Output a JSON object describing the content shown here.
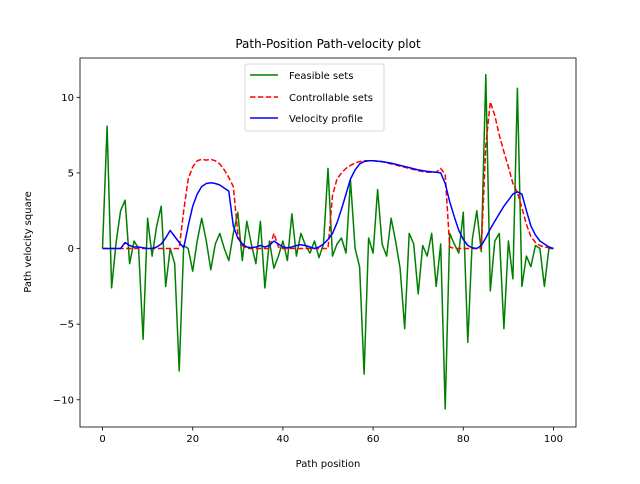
{
  "chart_data": {
    "type": "line",
    "title": "Path-Position Path-velocity plot",
    "xlabel": "Path position",
    "ylabel": "Path velocity square",
    "xlim": [
      -5,
      105
    ],
    "ylim": [
      -11.8,
      12.6
    ],
    "xticks": [
      0,
      20,
      40,
      60,
      80,
      100
    ],
    "yticks": [
      -10,
      -5,
      0,
      5,
      10
    ],
    "x_tick_labels": [
      "0",
      "20",
      "40",
      "60",
      "80",
      "100"
    ],
    "y_tick_labels": [
      "−10",
      "−5",
      "0",
      "5",
      "10"
    ],
    "grid": false,
    "legend_position": "top-center",
    "series": [
      {
        "name": "Feasible sets",
        "color": "#008000",
        "dash": "solid",
        "points": [
          [
            0,
            0
          ],
          [
            1,
            8.1
          ],
          [
            2,
            -2.6
          ],
          [
            3,
            0.4
          ],
          [
            4,
            2.5
          ],
          [
            5,
            3.2
          ],
          [
            6,
            -1.0
          ],
          [
            7,
            0.5
          ],
          [
            8,
            0.0
          ],
          [
            9,
            -6.0
          ],
          [
            10,
            2.0
          ],
          [
            11,
            -0.5
          ],
          [
            12,
            1.5
          ],
          [
            13,
            2.8
          ],
          [
            14,
            -2.5
          ],
          [
            15,
            0.0
          ],
          [
            16,
            -1.0
          ],
          [
            17,
            -8.1
          ],
          [
            18,
            0.2
          ],
          [
            19,
            0.0
          ],
          [
            20,
            -1.5
          ],
          [
            21,
            0.5
          ],
          [
            22,
            2.0
          ],
          [
            23,
            0.5
          ],
          [
            24,
            -1.4
          ],
          [
            25,
            0.3
          ],
          [
            26,
            1.0
          ],
          [
            27,
            0.0
          ],
          [
            28,
            -0.8
          ],
          [
            29,
            1.0
          ],
          [
            30,
            2.4
          ],
          [
            31,
            -0.8
          ],
          [
            32,
            1.8
          ],
          [
            33,
            0.3
          ],
          [
            34,
            -1.0
          ],
          [
            35,
            1.8
          ],
          [
            36,
            -2.6
          ],
          [
            37,
            0.5
          ],
          [
            38,
            -1.3
          ],
          [
            39,
            -0.5
          ],
          [
            40,
            0.5
          ],
          [
            41,
            -0.8
          ],
          [
            42,
            2.3
          ],
          [
            43,
            -0.5
          ],
          [
            44,
            1.0
          ],
          [
            45,
            0.2
          ],
          [
            46,
            -0.3
          ],
          [
            47,
            0.5
          ],
          [
            48,
            -0.6
          ],
          [
            49,
            0.3
          ],
          [
            50,
            5.3
          ],
          [
            51,
            -0.5
          ],
          [
            52,
            0.3
          ],
          [
            53,
            0.7
          ],
          [
            54,
            -0.3
          ],
          [
            55,
            4.5
          ],
          [
            56,
            0.0
          ],
          [
            57,
            -1.2
          ],
          [
            58,
            -8.3
          ],
          [
            59,
            0.7
          ],
          [
            60,
            -0.3
          ],
          [
            61,
            3.9
          ],
          [
            62,
            0.3
          ],
          [
            63,
            -0.5
          ],
          [
            64,
            2.0
          ],
          [
            65,
            0.5
          ],
          [
            66,
            -1.3
          ],
          [
            67,
            -5.3
          ],
          [
            68,
            1.0
          ],
          [
            69,
            0.3
          ],
          [
            70,
            -3.0
          ],
          [
            71,
            0.2
          ],
          [
            72,
            -0.5
          ],
          [
            73,
            1.0
          ],
          [
            74,
            -2.5
          ],
          [
            75,
            0.3
          ],
          [
            76,
            -10.6
          ],
          [
            77,
            1.0
          ],
          [
            78,
            0.3
          ],
          [
            79,
            -0.3
          ],
          [
            80,
            2.4
          ],
          [
            81,
            -6.2
          ],
          [
            82,
            0.6
          ],
          [
            83,
            2.5
          ],
          [
            84,
            -0.2
          ],
          [
            85,
            11.5
          ],
          [
            86,
            -2.8
          ],
          [
            87,
            0.5
          ],
          [
            88,
            1.0
          ],
          [
            89,
            -5.3
          ],
          [
            90,
            0.5
          ],
          [
            91,
            -2.0
          ],
          [
            92,
            10.6
          ],
          [
            93,
            -2.5
          ],
          [
            94,
            -0.5
          ],
          [
            95,
            -1.2
          ],
          [
            96,
            0.2
          ],
          [
            97,
            0.0
          ],
          [
            98,
            -2.5
          ],
          [
            99,
            0.0
          ],
          [
            100,
            0.0
          ]
        ]
      },
      {
        "name": "Controllable sets",
        "color": "#ff0000",
        "dash": "dashed",
        "points": [
          [
            0,
            0
          ],
          [
            17,
            0
          ],
          [
            18,
            2.5
          ],
          [
            19,
            4.6
          ],
          [
            20,
            5.4
          ],
          [
            21,
            5.8
          ],
          [
            22,
            5.9
          ],
          [
            23,
            5.85
          ],
          [
            24,
            5.9
          ],
          [
            25,
            5.8
          ],
          [
            26,
            5.6
          ],
          [
            27,
            5.2
          ],
          [
            28,
            4.7
          ],
          [
            29,
            4.1
          ],
          [
            30,
            1.0
          ],
          [
            31,
            0.2
          ],
          [
            32,
            0
          ],
          [
            37,
            0
          ],
          [
            38,
            1.0
          ],
          [
            39,
            0.1
          ],
          [
            40,
            0
          ],
          [
            50,
            0
          ],
          [
            51,
            3.5
          ],
          [
            52,
            4.6
          ],
          [
            53,
            5.0
          ],
          [
            54,
            5.3
          ],
          [
            55,
            5.5
          ],
          [
            56,
            5.65
          ],
          [
            57,
            5.75
          ],
          [
            58,
            5.8
          ],
          [
            60,
            5.8
          ],
          [
            62,
            5.75
          ],
          [
            64,
            5.6
          ],
          [
            66,
            5.45
          ],
          [
            68,
            5.3
          ],
          [
            70,
            5.15
          ],
          [
            72,
            5.05
          ],
          [
            74,
            5.05
          ],
          [
            75,
            5.3
          ],
          [
            76,
            4.9
          ],
          [
            77,
            0.1
          ],
          [
            78,
            0
          ],
          [
            84,
            0
          ],
          [
            85,
            6.8
          ],
          [
            86,
            9.7
          ],
          [
            87,
            8.8
          ],
          [
            88,
            7.5
          ],
          [
            89,
            6.4
          ],
          [
            90,
            5.4
          ],
          [
            91,
            4.3
          ],
          [
            92,
            3.7
          ],
          [
            93,
            2.7
          ],
          [
            94,
            1.6
          ],
          [
            95,
            0.8
          ],
          [
            96,
            0.4
          ],
          [
            97,
            0.2
          ],
          [
            98,
            0.1
          ],
          [
            99,
            0.05
          ],
          [
            100,
            0
          ]
        ]
      },
      {
        "name": "Velocity profile",
        "color": "#0000ff",
        "dash": "solid",
        "points": [
          [
            0,
            0
          ],
          [
            4,
            0
          ],
          [
            5,
            0.4
          ],
          [
            6,
            0.2
          ],
          [
            7,
            0.1
          ],
          [
            8,
            0.1
          ],
          [
            9,
            0.05
          ],
          [
            10,
            0
          ],
          [
            11,
            0
          ],
          [
            12,
            0.1
          ],
          [
            13,
            0.3
          ],
          [
            14,
            0.7
          ],
          [
            15,
            1.2
          ],
          [
            16,
            0.8
          ],
          [
            17,
            0.4
          ],
          [
            18,
            0.05
          ],
          [
            19,
            1.5
          ],
          [
            20,
            2.8
          ],
          [
            21,
            3.6
          ],
          [
            22,
            4.1
          ],
          [
            23,
            4.3
          ],
          [
            24,
            4.35
          ],
          [
            25,
            4.3
          ],
          [
            26,
            4.2
          ],
          [
            27,
            4.0
          ],
          [
            28,
            3.8
          ],
          [
            29,
            1.5
          ],
          [
            30,
            0.7
          ],
          [
            31,
            0.3
          ],
          [
            32,
            0.1
          ],
          [
            33,
            0.05
          ],
          [
            34,
            0.1
          ],
          [
            35,
            0.2
          ],
          [
            36,
            0.1
          ],
          [
            37,
            0.2
          ],
          [
            38,
            0.5
          ],
          [
            39,
            0.3
          ],
          [
            40,
            0.1
          ],
          [
            41,
            0.05
          ],
          [
            42,
            0.1
          ],
          [
            43,
            0.2
          ],
          [
            44,
            0.25
          ],
          [
            45,
            0.2
          ],
          [
            46,
            0.1
          ],
          [
            47,
            0.0
          ],
          [
            48,
            0.1
          ],
          [
            49,
            0.3
          ],
          [
            50,
            0.6
          ],
          [
            51,
            1.0
          ],
          [
            52,
            1.7
          ],
          [
            53,
            2.6
          ],
          [
            54,
            3.6
          ],
          [
            55,
            4.6
          ],
          [
            56,
            5.2
          ],
          [
            57,
            5.6
          ],
          [
            58,
            5.75
          ],
          [
            59,
            5.8
          ],
          [
            60,
            5.8
          ],
          [
            62,
            5.75
          ],
          [
            64,
            5.65
          ],
          [
            66,
            5.5
          ],
          [
            68,
            5.35
          ],
          [
            70,
            5.2
          ],
          [
            72,
            5.1
          ],
          [
            74,
            5.05
          ],
          [
            75,
            5.0
          ],
          [
            76,
            4.3
          ],
          [
            77,
            3.1
          ],
          [
            78,
            2.1
          ],
          [
            79,
            1.2
          ],
          [
            80,
            0.6
          ],
          [
            81,
            0.2
          ],
          [
            82,
            0.05
          ],
          [
            83,
            0.0
          ],
          [
            84,
            0.2
          ],
          [
            85,
            0.7
          ],
          [
            86,
            1.3
          ],
          [
            87,
            1.8
          ],
          [
            88,
            2.3
          ],
          [
            89,
            2.8
          ],
          [
            90,
            3.2
          ],
          [
            91,
            3.6
          ],
          [
            92,
            3.75
          ],
          [
            93,
            3.6
          ],
          [
            94,
            2.5
          ],
          [
            95,
            1.5
          ],
          [
            96,
            0.9
          ],
          [
            97,
            0.5
          ],
          [
            98,
            0.3
          ],
          [
            99,
            0.1
          ],
          [
            100,
            0
          ]
        ]
      }
    ]
  }
}
